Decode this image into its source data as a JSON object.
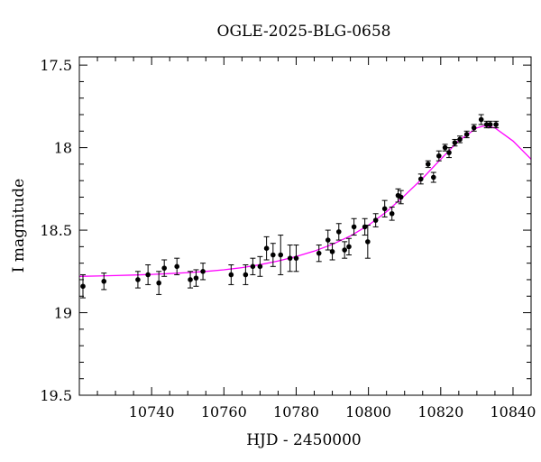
{
  "chart_data": {
    "type": "scatter",
    "title": "OGLE-2025-BLG-0658",
    "xlabel": "HJD - 2450000",
    "ylabel": "I magnitude",
    "xlim": [
      10720,
      10845
    ],
    "ylim": [
      19.5,
      17.45
    ],
    "y_inverted": true,
    "x_ticks": [
      10740,
      10760,
      10780,
      10800,
      10820,
      10840
    ],
    "x_tick_labels": [
      "10740",
      "10760",
      "10780",
      "10800",
      "10820",
      "10840"
    ],
    "y_ticks": [
      17.5,
      18,
      18.5,
      19,
      19.5
    ],
    "y_tick_labels": [
      "17.5",
      "18",
      "18.5",
      "19",
      "19.5"
    ],
    "grid": false,
    "colors": {
      "points": "#000000",
      "model": "#ff00ff"
    },
    "series": [
      {
        "kind": "points_with_errorbars",
        "x": [
          10721.0,
          10726.8,
          10736.2,
          10739.0,
          10742.0,
          10743.5,
          10747.0,
          10750.7,
          10752.3,
          10754.2,
          10762.0,
          10766.0,
          10768.0,
          10770.0,
          10771.8,
          10773.6,
          10775.7,
          10778.3,
          10780.0,
          10786.3,
          10788.8,
          10790.0,
          10791.8,
          10793.4,
          10794.6,
          10796.0,
          10799.0,
          10799.8,
          10802.0,
          10804.5,
          10806.5,
          10808.2,
          10809.0,
          10814.5,
          10816.5,
          10818.0,
          10819.5,
          10821.2,
          10822.3,
          10823.9,
          10825.3,
          10827.2,
          10829.2,
          10831.2,
          10832.7,
          10833.7,
          10835.3
        ],
        "y": [
          18.84,
          18.81,
          18.8,
          18.77,
          18.82,
          18.73,
          18.72,
          18.8,
          18.79,
          18.75,
          18.77,
          18.77,
          18.72,
          18.72,
          18.61,
          18.65,
          18.65,
          18.67,
          18.67,
          18.64,
          18.56,
          18.63,
          18.51,
          18.62,
          18.6,
          18.48,
          18.48,
          18.57,
          18.44,
          18.37,
          18.4,
          18.29,
          18.3,
          18.19,
          18.1,
          18.18,
          18.05,
          18.0,
          18.03,
          17.97,
          17.95,
          17.92,
          17.88,
          17.83,
          17.86,
          17.86,
          17.86
        ],
        "err": [
          0.07,
          0.05,
          0.05,
          0.06,
          0.07,
          0.05,
          0.05,
          0.05,
          0.05,
          0.05,
          0.06,
          0.06,
          0.05,
          0.06,
          0.07,
          0.07,
          0.12,
          0.08,
          0.08,
          0.05,
          0.06,
          0.05,
          0.05,
          0.05,
          0.05,
          0.05,
          0.05,
          0.1,
          0.04,
          0.05,
          0.04,
          0.04,
          0.04,
          0.03,
          0.02,
          0.03,
          0.03,
          0.02,
          0.03,
          0.02,
          0.02,
          0.02,
          0.02,
          0.03,
          0.02,
          0.02,
          0.02
        ]
      },
      {
        "kind": "model_curve",
        "x": [
          10720,
          10725,
          10730,
          10735,
          10740,
          10745,
          10750,
          10755,
          10760,
          10765,
          10770,
          10775,
          10780,
          10785,
          10790,
          10795,
          10800,
          10805,
          10810,
          10815,
          10820,
          10825,
          10830,
          10832,
          10835,
          10840,
          10845
        ],
        "y": [
          18.78,
          18.778,
          18.775,
          18.772,
          18.768,
          18.763,
          18.757,
          18.75,
          18.74,
          18.727,
          18.709,
          18.687,
          18.66,
          18.627,
          18.586,
          18.535,
          18.47,
          18.388,
          18.29,
          18.185,
          18.07,
          17.958,
          17.88,
          17.868,
          17.88,
          17.96,
          18.07
        ]
      }
    ]
  }
}
